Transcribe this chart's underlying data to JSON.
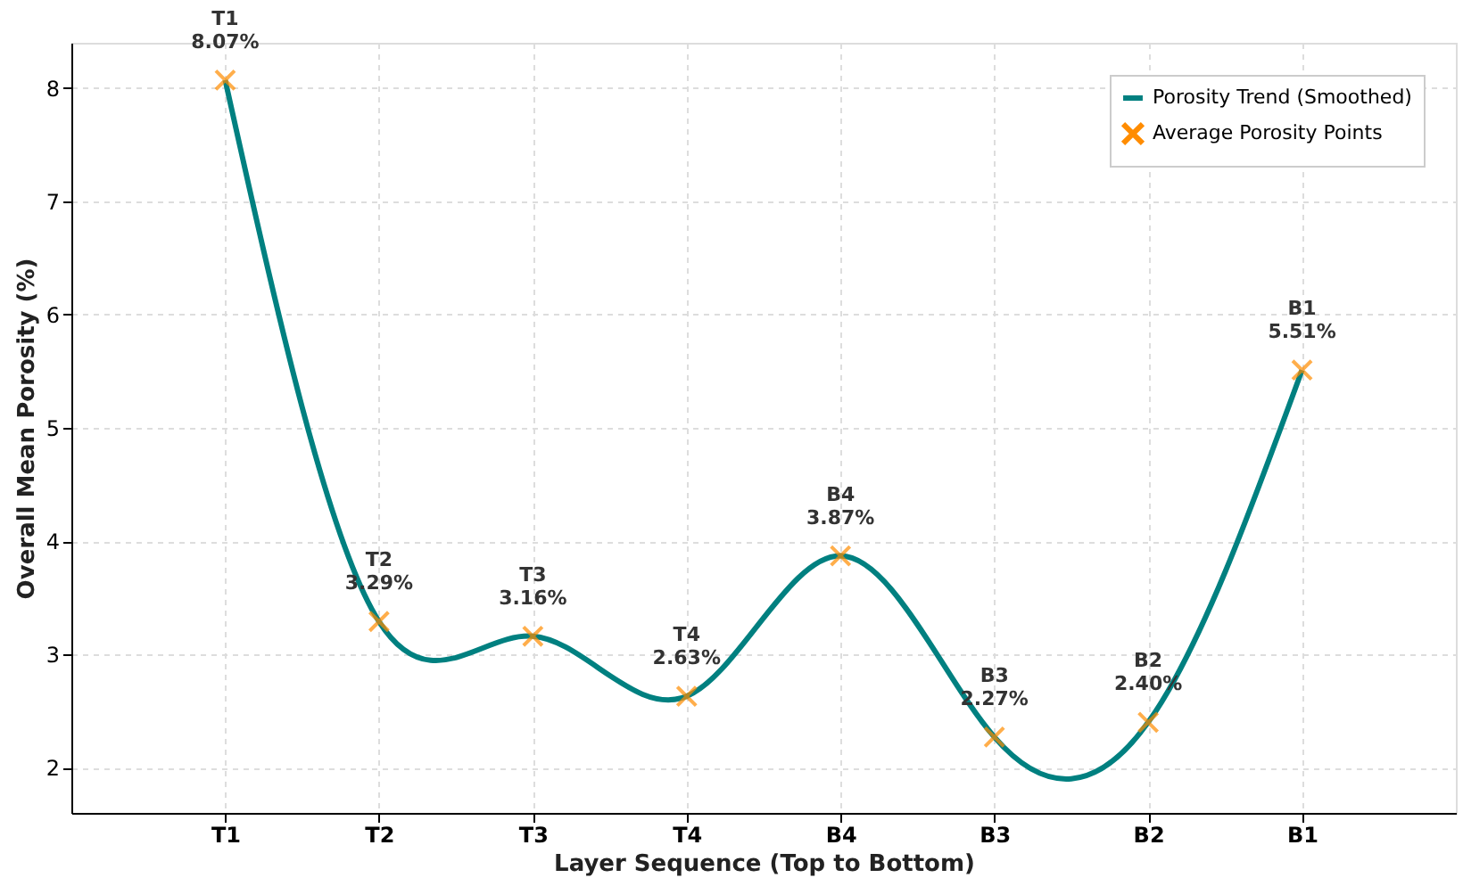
{
  "chart_data": {
    "type": "line",
    "xlabel": "Layer Sequence (Top to Bottom)",
    "ylabel": "Overall Mean Porosity (%)",
    "categories": [
      "T1",
      "T2",
      "T3",
      "T4",
      "B4",
      "B3",
      "B2",
      "B1"
    ],
    "series": [
      {
        "name": "Porosity Trend (Smoothed)",
        "color": "#008080",
        "marker": "none",
        "line_style": "solid",
        "values": [
          8.07,
          3.29,
          3.16,
          2.63,
          3.87,
          2.27,
          2.4,
          5.51
        ]
      },
      {
        "name": "Average Porosity Points",
        "type": "scatter",
        "color": "#ff8c00",
        "marker": "cross",
        "values": [
          8.07,
          3.29,
          3.16,
          2.63,
          3.87,
          2.27,
          2.4,
          5.51
        ],
        "value_labels": [
          "8.07%",
          "3.29%",
          "3.16%",
          "2.63%",
          "3.87%",
          "2.27%",
          "2.40%",
          "5.51%"
        ]
      }
    ],
    "ylim": [
      1.6,
      8.4
    ],
    "yticks": [
      2,
      3,
      4,
      5,
      6,
      7,
      8
    ],
    "grid": true,
    "legend": "top right"
  }
}
